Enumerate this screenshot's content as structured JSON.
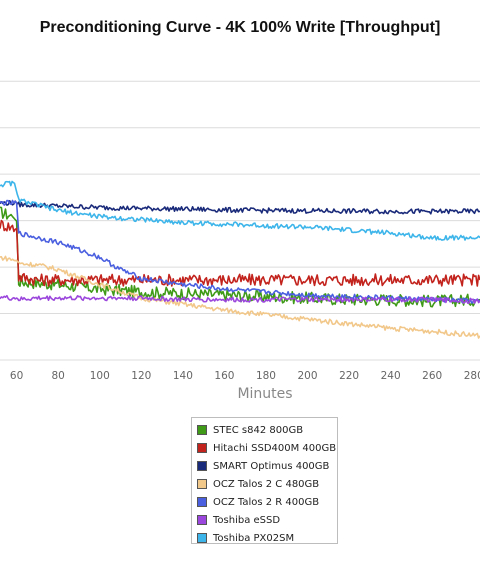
{
  "chart_data": {
    "type": "line",
    "title": "Preconditioning Curve - 4K 100% Write [Throughput]",
    "xlabel": "Minutes",
    "ylabel": "",
    "x_ticks": [
      60,
      80,
      100,
      120,
      140,
      160,
      180,
      200,
      220,
      240,
      260,
      280
    ],
    "xlim": [
      52,
      283
    ],
    "grid": true,
    "legend_position": "bottom",
    "series": [
      {
        "name": "STEC s842 800GB",
        "color": "#3e9a17",
        "x": [
          52,
          58,
          60,
          61,
          70,
          80,
          100,
          120,
          140,
          160,
          180,
          200,
          220,
          240,
          260,
          283
        ],
        "y": [
          0.49,
          0.475,
          0.46,
          0.26,
          0.255,
          0.25,
          0.235,
          0.225,
          0.22,
          0.215,
          0.21,
          0.205,
          0.2,
          0.2,
          0.195,
          0.2
        ]
      },
      {
        "name": "Hitachi SSD400M 400GB",
        "color": "#c3231d",
        "x": [
          52,
          60,
          61,
          70,
          80,
          100,
          120,
          140,
          160,
          180,
          200,
          220,
          240,
          260,
          283
        ],
        "y": [
          0.45,
          0.435,
          0.275,
          0.265,
          0.265,
          0.265,
          0.265,
          0.265,
          0.265,
          0.265,
          0.265,
          0.265,
          0.265,
          0.265,
          0.265
        ]
      },
      {
        "name": "SMART Optimus 400GB",
        "color": "#1a2a7a",
        "x": [
          52,
          60,
          61,
          80,
          100,
          120,
          140,
          160,
          180,
          200,
          220,
          240,
          260,
          283
        ],
        "y": [
          0.52,
          0.52,
          0.515,
          0.51,
          0.505,
          0.502,
          0.5,
          0.497,
          0.495,
          0.494,
          0.493,
          0.492,
          0.492,
          0.492
        ]
      },
      {
        "name": "OCZ Talos 2 C 480GB",
        "color": "#f2c78a",
        "x": [
          52,
          60,
          61,
          70,
          80,
          90,
          100,
          120,
          140,
          160,
          180,
          200,
          220,
          240,
          260,
          283
        ],
        "y": [
          0.34,
          0.33,
          0.32,
          0.315,
          0.3,
          0.275,
          0.25,
          0.205,
          0.185,
          0.165,
          0.15,
          0.135,
          0.12,
          0.105,
          0.095,
          0.08
        ]
      },
      {
        "name": "OCZ Talos 2 R 400GB",
        "color": "#4a5fe0",
        "x": [
          52,
          60,
          61,
          70,
          80,
          100,
          110,
          120,
          140,
          160,
          180,
          200,
          220,
          240,
          260,
          283
        ],
        "y": [
          0.52,
          0.52,
          0.42,
          0.405,
          0.39,
          0.34,
          0.3,
          0.27,
          0.25,
          0.235,
          0.225,
          0.215,
          0.21,
          0.205,
          0.2,
          0.195
        ]
      },
      {
        "name": "Toshiba eSSD",
        "color": "#9b46dc",
        "x": [
          52,
          56,
          60,
          61,
          70,
          80,
          100,
          120,
          140,
          160,
          180,
          200,
          220,
          240,
          260,
          283
        ],
        "y": [
          0.21,
          0.205,
          0.205,
          0.2,
          0.205,
          0.205,
          0.205,
          0.205,
          0.2,
          0.2,
          0.2,
          0.2,
          0.2,
          0.2,
          0.2,
          0.195
        ]
      },
      {
        "name": "Toshiba PX02SM",
        "color": "#3db5ea",
        "x": [
          52,
          56,
          59,
          61,
          80,
          100,
          120,
          140,
          160,
          180,
          200,
          220,
          240,
          260,
          283
        ],
        "y": [
          0.58,
          0.585,
          0.585,
          0.53,
          0.495,
          0.475,
          0.465,
          0.455,
          0.45,
          0.445,
          0.44,
          0.43,
          0.42,
          0.405,
          0.405
        ]
      }
    ]
  }
}
